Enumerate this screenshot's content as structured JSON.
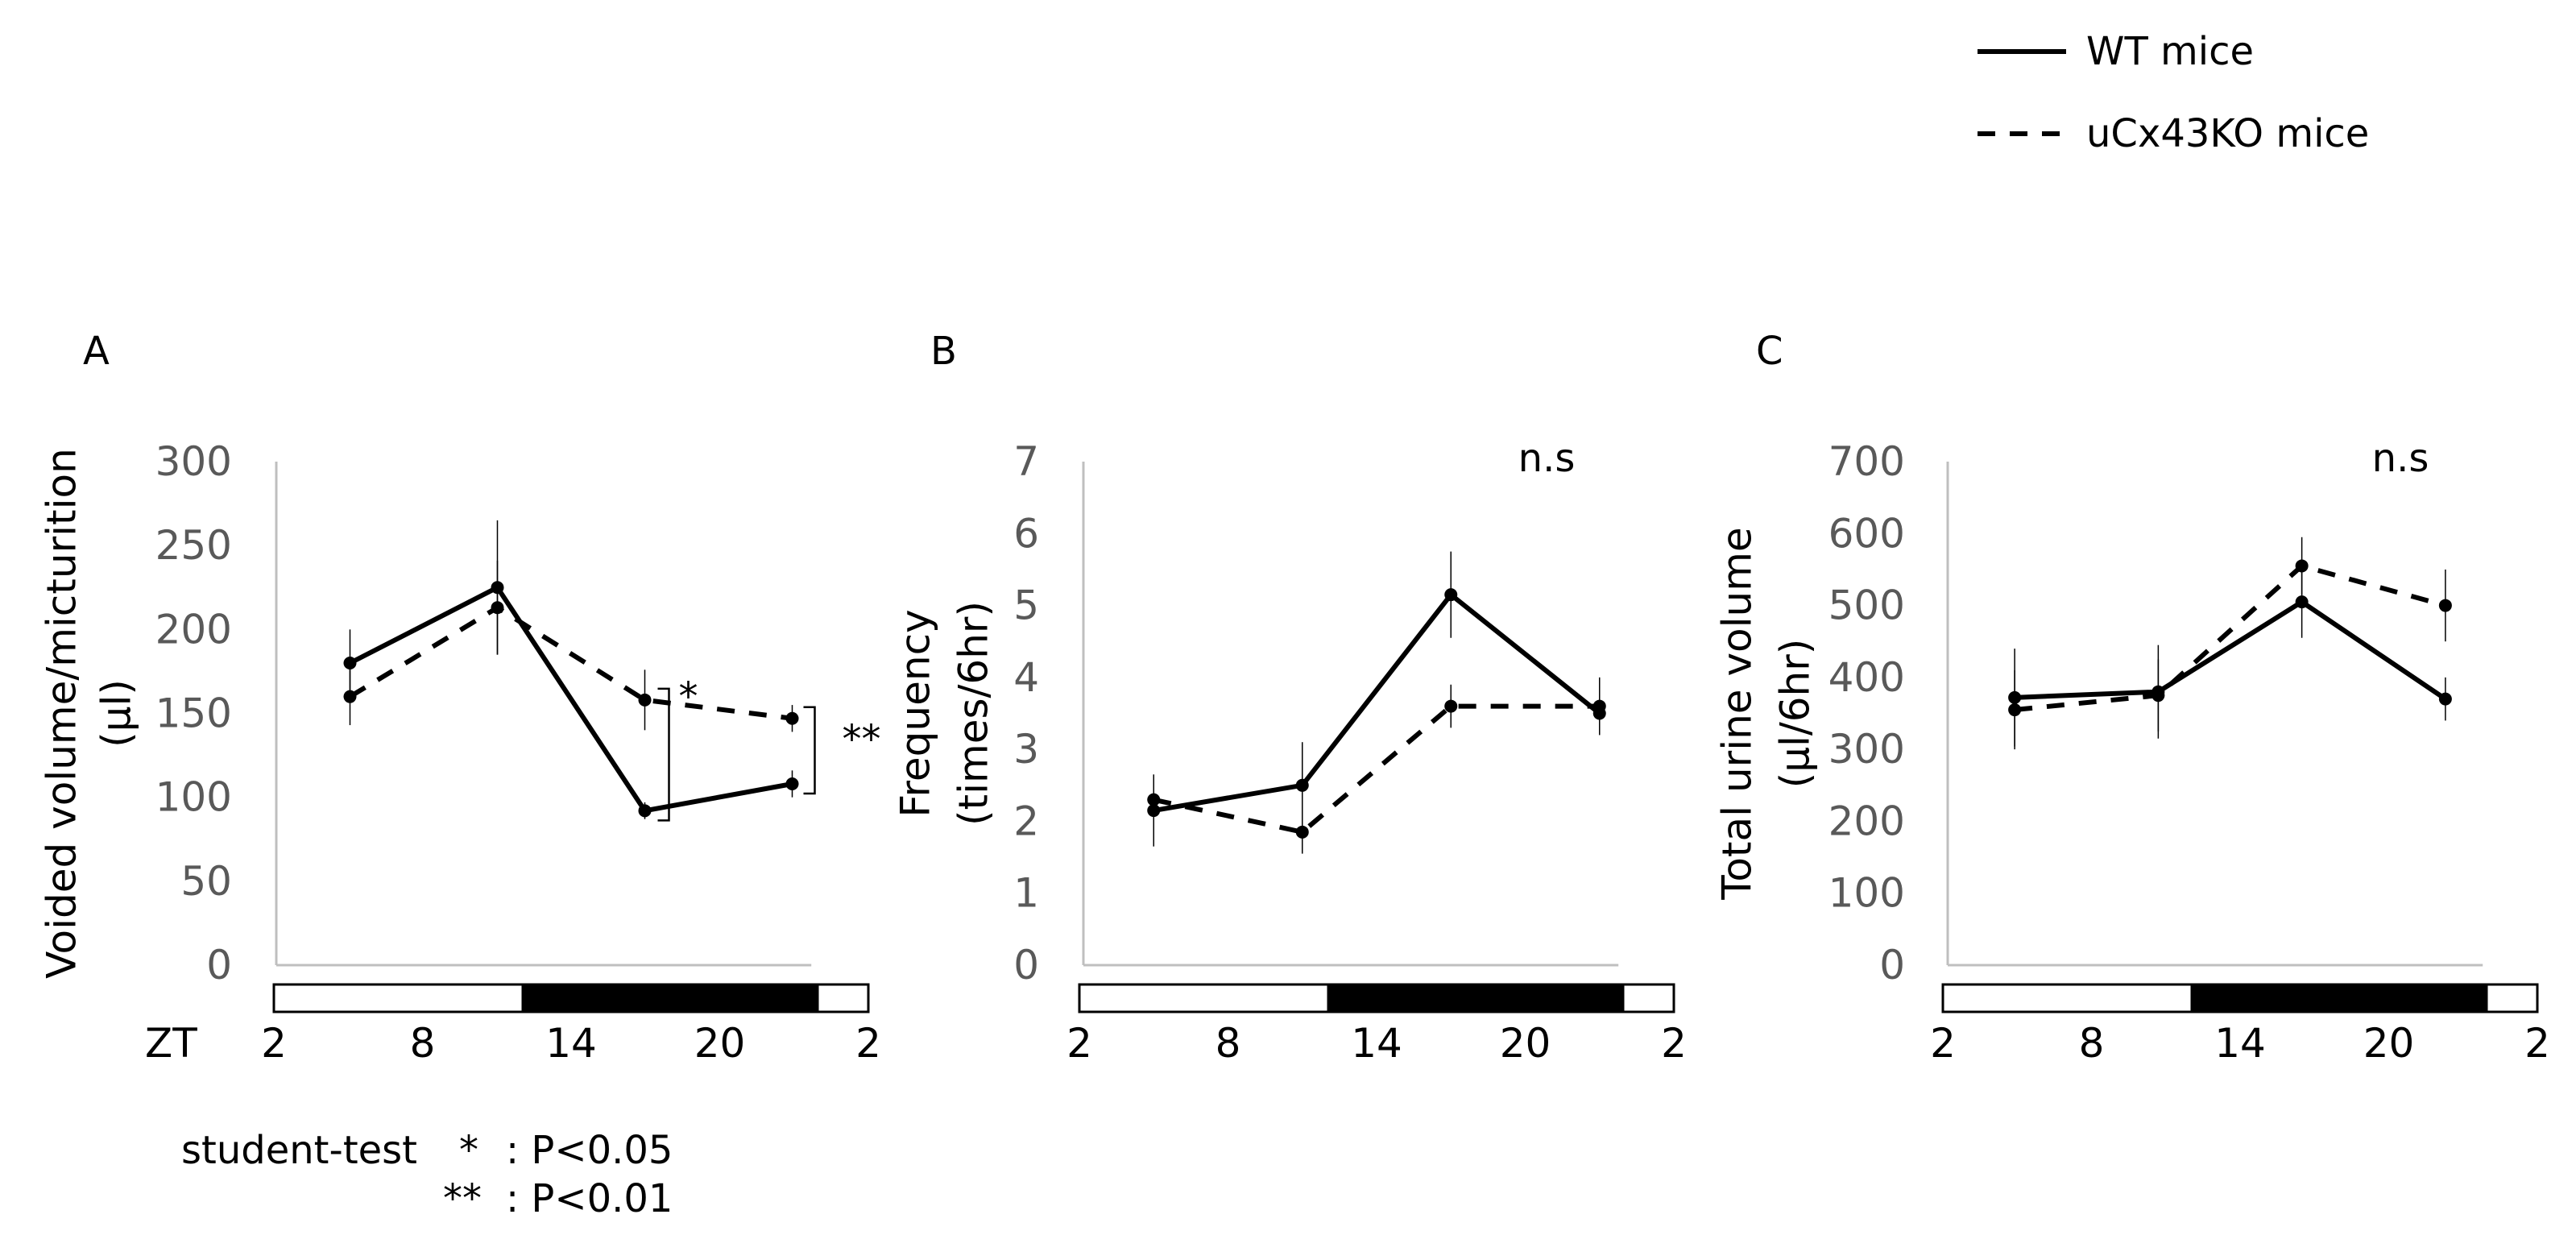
{
  "legend": [
    {
      "label": "WT mice",
      "style": "solid"
    },
    {
      "label": "uCx43KO mice",
      "style": "dashed"
    }
  ],
  "colors": {
    "line": "#000000",
    "axis": "#bfbfbf",
    "tick_text": "#595959",
    "dark_bar": "#000000"
  },
  "light_dark_bar": {
    "light_from_zt": 2,
    "dark_from_zt": 12,
    "dark_to_zt": 24,
    "end_zt": 26
  },
  "zt_label": "ZT",
  "footnote": {
    "test": "student-test",
    "lines": [
      {
        "sym": "*",
        "text": ": P<0.05"
      },
      {
        "sym": "**",
        "text": ": P<0.01"
      }
    ]
  },
  "chart_data": [
    {
      "type": "line",
      "panel": "A",
      "ylabel_lines": [
        "Voided volume/micturition",
        "(μl)"
      ],
      "ylim": [
        0,
        300
      ],
      "yticks": [
        "0",
        "50",
        "100",
        "150",
        "200",
        "250",
        "300"
      ],
      "xlim": [
        2,
        26
      ],
      "xticks": [
        "2",
        "8",
        "14",
        "20",
        "2"
      ],
      "x": [
        5,
        11,
        17,
        23
      ],
      "series": [
        {
          "name": "WT mice",
          "values": [
            180,
            225,
            92,
            108
          ],
          "err": [
            20,
            40,
            5,
            8
          ]
        },
        {
          "name": "uCx43KO mice",
          "values": [
            160,
            213,
            158,
            147
          ],
          "err": [
            17,
            28,
            18,
            8
          ]
        }
      ],
      "annotation": "",
      "significance": [
        {
          "x": 17,
          "label": "*"
        },
        {
          "x": 23,
          "label": "**"
        }
      ]
    },
    {
      "type": "line",
      "panel": "B",
      "ylabel_lines": [
        "Frequency",
        "(times/6hr)"
      ],
      "ylim": [
        0,
        7
      ],
      "yticks": [
        "0",
        "1",
        "2",
        "3",
        "4",
        "5",
        "6",
        "7"
      ],
      "xlim": [
        2,
        26
      ],
      "xticks": [
        "2",
        "8",
        "14",
        "20",
        "2"
      ],
      "x": [
        5,
        11,
        17,
        23
      ],
      "series": [
        {
          "name": "WT mice",
          "values": [
            2.15,
            2.5,
            5.15,
            3.5
          ],
          "err": [
            0.5,
            0.6,
            0.6,
            0.3
          ]
        },
        {
          "name": "uCx43KO mice",
          "values": [
            2.3,
            1.85,
            3.6,
            3.6
          ],
          "err": [
            0.35,
            0.3,
            0.3,
            0.4
          ]
        }
      ],
      "annotation": "n.s",
      "significance": []
    },
    {
      "type": "line",
      "panel": "C",
      "ylabel_lines": [
        "Total urine volume",
        "(μl/6hr)"
      ],
      "ylim": [
        0,
        700
      ],
      "yticks": [
        "0",
        "100",
        "200",
        "300",
        "400",
        "500",
        "600",
        "700"
      ],
      "xlim": [
        2,
        26
      ],
      "xticks": [
        "2",
        "8",
        "14",
        "20",
        "2"
      ],
      "x": [
        5,
        11,
        17,
        23
      ],
      "series": [
        {
          "name": "WT mice",
          "values": [
            372,
            380,
            505,
            370
          ],
          "err": [
            68,
            65,
            50,
            30
          ]
        },
        {
          "name": "uCx43KO mice",
          "values": [
            355,
            375,
            555,
            500
          ],
          "err": [
            55,
            50,
            40,
            50
          ]
        }
      ],
      "annotation": "n.s",
      "significance": []
    }
  ]
}
